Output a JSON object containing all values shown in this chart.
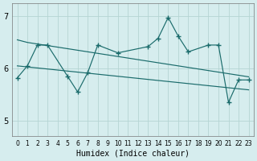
{
  "xlabel": "Humidex (Indice chaleur)",
  "xlim": [
    -0.5,
    23.5
  ],
  "ylim": [
    4.7,
    7.25
  ],
  "yticks": [
    5,
    6,
    7
  ],
  "xticks": [
    0,
    1,
    2,
    3,
    4,
    5,
    6,
    7,
    8,
    9,
    10,
    11,
    12,
    13,
    14,
    15,
    16,
    17,
    18,
    19,
    20,
    21,
    22,
    23
  ],
  "bg_color": "#d6edee",
  "line_color": "#1a6b6b",
  "grid_color": "#b5d5d3",
  "line1_x": [
    0,
    1,
    2,
    3,
    4,
    5,
    6,
    7,
    8,
    9,
    10,
    11,
    12,
    13,
    14,
    15,
    16,
    17,
    18,
    19,
    20,
    21,
    22,
    23
  ],
  "line1_y": [
    6.55,
    6.5,
    6.47,
    6.44,
    6.41,
    6.38,
    6.35,
    6.32,
    6.29,
    6.26,
    6.23,
    6.2,
    6.17,
    6.14,
    6.11,
    6.08,
    6.05,
    6.02,
    5.99,
    5.96,
    5.93,
    5.9,
    5.87,
    5.84
  ],
  "line2_x": [
    0,
    1,
    2,
    3,
    4,
    5,
    6,
    7,
    8,
    9,
    10,
    11,
    12,
    13,
    14,
    15,
    16,
    17,
    18,
    19,
    20,
    21,
    22,
    23
  ],
  "line2_y": [
    6.05,
    6.03,
    6.01,
    5.99,
    5.97,
    5.95,
    5.93,
    5.91,
    5.89,
    5.87,
    5.85,
    5.83,
    5.81,
    5.79,
    5.77,
    5.75,
    5.73,
    5.71,
    5.69,
    5.67,
    5.65,
    5.63,
    5.61,
    5.59
  ],
  "line3_x": [
    0,
    1,
    2,
    3,
    5,
    6,
    7,
    8,
    10,
    13,
    14,
    15,
    16,
    17,
    19,
    20,
    21,
    22,
    23
  ],
  "line3_y": [
    5.82,
    6.05,
    6.45,
    6.45,
    5.85,
    5.55,
    5.92,
    6.45,
    6.3,
    6.42,
    6.58,
    6.98,
    6.62,
    6.32,
    6.45,
    6.45,
    5.35,
    5.78,
    5.78
  ]
}
